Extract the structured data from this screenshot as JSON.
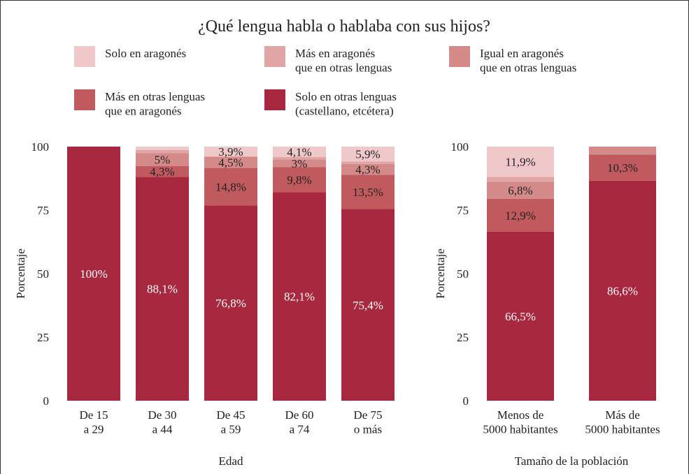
{
  "chart_data": [
    {
      "type": "stacked-bar",
      "title": "¿Qué lengua habla o hablaba con sus hijos?",
      "xlabel": "Edad",
      "ylabel": "Porcentaje",
      "categories": [
        "De 15\na 29",
        "De 30\na 44",
        "De 45\na 59",
        "De 60\na 74",
        "De 75\no más"
      ],
      "ylim": [
        0,
        100
      ],
      "yticks": [
        0,
        25,
        50,
        75,
        100
      ],
      "series": [
        {
          "name": "Solo en otras lenguas\n(castellano, etcétera)",
          "color": "#a8283f",
          "values": [
            100,
            88.1,
            76.8,
            82.1,
            75.4
          ],
          "value_labels": [
            "100%",
            "88,1%",
            "76,8%",
            "82,1%",
            "75,4%"
          ]
        },
        {
          "name": "Más en otras lenguas\nque en aragonés",
          "color": "#c05a5e",
          "values": [
            0,
            4.3,
            14.8,
            9.8,
            13.5
          ],
          "value_labels": [
            null,
            "4,3%",
            "14,8%",
            "9,8%",
            "13,5%"
          ]
        },
        {
          "name": "Igual en aragonés\nque en otras lenguas",
          "color": "#d58a8a",
          "values": [
            0,
            5,
            4.5,
            3,
            4.3
          ],
          "value_labels": [
            null,
            "5%",
            "4,5%",
            "3%",
            "4,3%"
          ]
        },
        {
          "name": "Más en aragonés\nque en otras lenguas",
          "color": "#e2a5a5",
          "values": [
            0,
            1.3,
            0,
            1,
            0.9
          ],
          "value_labels": [
            null,
            null,
            null,
            null,
            null
          ]
        },
        {
          "name": "Solo en aragonés",
          "color": "#efc9c9",
          "values": [
            0,
            1.3,
            3.9,
            4.1,
            5.9
          ],
          "value_labels": [
            null,
            null,
            "3,9%",
            "4,1%",
            "5,9%"
          ]
        }
      ]
    },
    {
      "type": "stacked-bar",
      "xlabel": "Tamaño de la población",
      "ylabel": "Porcentaje",
      "categories": [
        "Menos de\n5000 habitantes",
        "Más de\n5000 habitantes"
      ],
      "ylim": [
        0,
        100
      ],
      "yticks": [
        0,
        25,
        50,
        75,
        100
      ],
      "series": [
        {
          "color": "#a8283f",
          "values": [
            66.5,
            86.6
          ],
          "value_labels": [
            "66,5%",
            "86,6%"
          ]
        },
        {
          "color": "#c05a5e",
          "values": [
            12.9,
            10.3
          ],
          "value_labels": [
            "12,9%",
            "10,3%"
          ]
        },
        {
          "color": "#d58a8a",
          "values": [
            6.8,
            3.1
          ],
          "value_labels": [
            "6,8%",
            null
          ]
        },
        {
          "color": "#e2a5a5",
          "values": [
            1.9,
            0
          ],
          "value_labels": [
            null,
            null
          ]
        },
        {
          "color": "#efc9c9",
          "values": [
            11.9,
            0
          ],
          "value_labels": [
            "11,9%",
            null
          ]
        }
      ]
    }
  ]
}
